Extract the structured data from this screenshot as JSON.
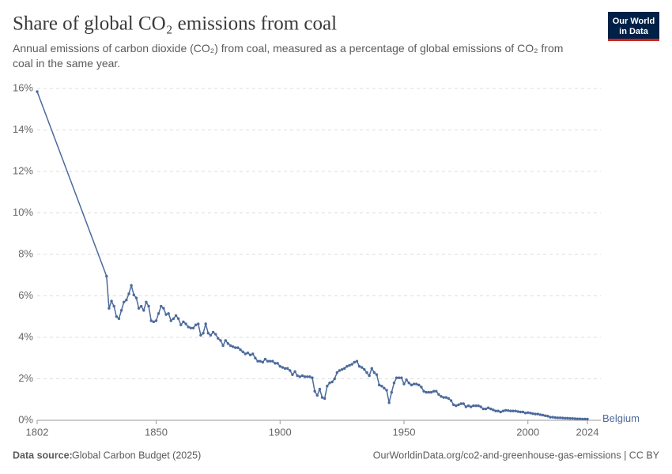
{
  "chart_data": {
    "type": "line",
    "title": "Share of global CO₂ emissions from coal",
    "subtitle": "Annual emissions of carbon dioxide (CO₂) from coal, measured as a percentage of global emissions of CO₂ from coal in the same year.",
    "logo": {
      "line1": "Our World",
      "line2": "in Data"
    },
    "source_label": "Data source:",
    "source": "Global Carbon Budget (2025)",
    "url": "OurWorldinData.org/co2-and-greenhouse-gas-emissions | CC BY",
    "grid": true,
    "xlim": [
      1802,
      2024
    ],
    "xticks": [
      1802,
      1850,
      1900,
      1950,
      2000,
      2024
    ],
    "ylim": [
      0,
      16
    ],
    "yticks": [
      {
        "value": 0,
        "label": "0%"
      },
      {
        "value": 2,
        "label": "2%"
      },
      {
        "value": 4,
        "label": "4%"
      },
      {
        "value": 6,
        "label": "6%"
      },
      {
        "value": 8,
        "label": "8%"
      },
      {
        "value": 10,
        "label": "10%"
      },
      {
        "value": 12,
        "label": "12%"
      },
      {
        "value": 14,
        "label": "14%"
      },
      {
        "value": 16,
        "label": "16%"
      }
    ],
    "x": [
      1802,
      1830,
      1831,
      1832,
      1833,
      1834,
      1835,
      1836,
      1837,
      1838,
      1839,
      1840,
      1841,
      1842,
      1843,
      1844,
      1845,
      1846,
      1847,
      1848,
      1849,
      1850,
      1851,
      1852,
      1853,
      1854,
      1855,
      1856,
      1857,
      1858,
      1859,
      1860,
      1861,
      1862,
      1863,
      1864,
      1865,
      1866,
      1867,
      1868,
      1869,
      1870,
      1871,
      1872,
      1873,
      1874,
      1875,
      1876,
      1877,
      1878,
      1879,
      1880,
      1881,
      1882,
      1883,
      1884,
      1885,
      1886,
      1887,
      1888,
      1889,
      1890,
      1891,
      1892,
      1893,
      1894,
      1895,
      1896,
      1897,
      1898,
      1899,
      1900,
      1901,
      1902,
      1903,
      1904,
      1905,
      1906,
      1907,
      1908,
      1909,
      1910,
      1911,
      1912,
      1913,
      1914,
      1915,
      1916,
      1917,
      1918,
      1919,
      1920,
      1921,
      1922,
      1923,
      1924,
      1925,
      1926,
      1927,
      1928,
      1929,
      1930,
      1931,
      1932,
      1933,
      1934,
      1935,
      1936,
      1937,
      1938,
      1939,
      1940,
      1941,
      1942,
      1943,
      1944,
      1945,
      1946,
      1947,
      1948,
      1949,
      1950,
      1951,
      1952,
      1953,
      1954,
      1955,
      1956,
      1957,
      1958,
      1959,
      1960,
      1961,
      1962,
      1963,
      1964,
      1965,
      1966,
      1967,
      1968,
      1969,
      1970,
      1971,
      1972,
      1973,
      1974,
      1975,
      1976,
      1977,
      1978,
      1979,
      1980,
      1981,
      1982,
      1983,
      1984,
      1985,
      1986,
      1987,
      1988,
      1989,
      1990,
      1991,
      1992,
      1993,
      1994,
      1995,
      1996,
      1997,
      1998,
      1999,
      2000,
      2001,
      2002,
      2003,
      2004,
      2005,
      2006,
      2007,
      2008,
      2009,
      2010,
      2011,
      2012,
      2013,
      2014,
      2015,
      2016,
      2017,
      2018,
      2019,
      2020,
      2021,
      2022,
      2023,
      2024
    ],
    "series": [
      {
        "name": "Belgium",
        "color": "#4c6a9c",
        "values": [
          15.85,
          6.95,
          5.4,
          5.75,
          5.5,
          5.0,
          4.9,
          5.3,
          5.7,
          5.8,
          6.1,
          6.5,
          6.05,
          5.9,
          5.4,
          5.5,
          5.3,
          5.7,
          5.5,
          4.8,
          4.75,
          4.8,
          5.15,
          5.5,
          5.4,
          5.1,
          5.15,
          4.8,
          4.9,
          5.05,
          4.9,
          4.6,
          4.75,
          4.65,
          4.5,
          4.45,
          4.45,
          4.6,
          4.65,
          4.1,
          4.2,
          4.65,
          4.2,
          4.1,
          4.25,
          4.15,
          3.95,
          3.85,
          3.6,
          3.85,
          3.7,
          3.6,
          3.55,
          3.5,
          3.5,
          3.4,
          3.3,
          3.2,
          3.25,
          3.15,
          3.2,
          3.0,
          2.85,
          2.85,
          2.8,
          2.95,
          2.85,
          2.85,
          2.85,
          2.75,
          2.75,
          2.6,
          2.55,
          2.5,
          2.5,
          2.4,
          2.2,
          2.35,
          2.15,
          2.1,
          2.15,
          2.1,
          2.1,
          2.1,
          2.05,
          1.4,
          1.2,
          1.5,
          1.1,
          1.05,
          1.65,
          1.8,
          1.85,
          2.0,
          2.3,
          2.4,
          2.45,
          2.5,
          2.6,
          2.65,
          2.7,
          2.8,
          2.85,
          2.6,
          2.55,
          2.45,
          2.3,
          2.15,
          2.5,
          2.3,
          2.2,
          1.7,
          1.65,
          1.55,
          1.45,
          0.85,
          1.35,
          1.8,
          2.05,
          2.05,
          2.05,
          1.75,
          1.95,
          1.8,
          1.7,
          1.75,
          1.75,
          1.7,
          1.6,
          1.4,
          1.35,
          1.35,
          1.35,
          1.4,
          1.4,
          1.25,
          1.15,
          1.1,
          1.1,
          1.05,
          0.95,
          0.75,
          0.7,
          0.75,
          0.8,
          0.8,
          0.65,
          0.7,
          0.65,
          0.7,
          0.7,
          0.7,
          0.65,
          0.55,
          0.55,
          0.6,
          0.55,
          0.5,
          0.45,
          0.45,
          0.4,
          0.45,
          0.48,
          0.47,
          0.45,
          0.45,
          0.45,
          0.42,
          0.4,
          0.4,
          0.35,
          0.37,
          0.35,
          0.32,
          0.3,
          0.3,
          0.27,
          0.25,
          0.22,
          0.2,
          0.15,
          0.15,
          0.13,
          0.12,
          0.12,
          0.11,
          0.1,
          0.1,
          0.09,
          0.09,
          0.08,
          0.07,
          0.07,
          0.06,
          0.06,
          0.06
        ]
      }
    ]
  }
}
